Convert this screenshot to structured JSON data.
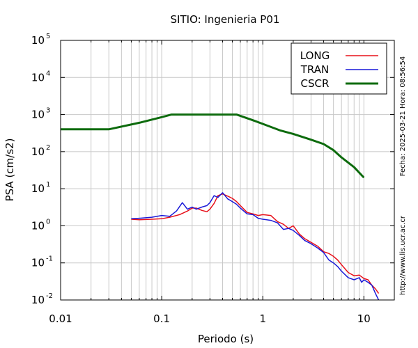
{
  "chart_data": {
    "type": "line",
    "title": "SITIO: Ingenieria P01",
    "xlabel": "Periodo (s)",
    "ylabel": "PSA (cm/s2)",
    "x_scale": "log",
    "y_scale": "log",
    "xlim": [
      0.01,
      20
    ],
    "ylim": [
      0.01,
      100000
    ],
    "grid": true,
    "legend_position": "top-right",
    "x_ticks": [
      {
        "value": 0.01,
        "label": "0.01"
      },
      {
        "value": 0.1,
        "label": "0.1"
      },
      {
        "value": 1,
        "label": "1"
      },
      {
        "value": 10,
        "label": "10"
      }
    ],
    "y_ticks": [
      {
        "value": 0.01,
        "base": "10",
        "exp": "-2"
      },
      {
        "value": 0.1,
        "base": "10",
        "exp": "-1"
      },
      {
        "value": 1,
        "base": "10",
        "exp": "0"
      },
      {
        "value": 10,
        "base": "10",
        "exp": "1"
      },
      {
        "value": 100,
        "base": "10",
        "exp": "2"
      },
      {
        "value": 1000,
        "base": "10",
        "exp": "3"
      },
      {
        "value": 10000,
        "base": "10",
        "exp": "4"
      },
      {
        "value": 100000,
        "base": "10",
        "exp": "5"
      }
    ],
    "series": [
      {
        "name": "LONG",
        "color": "#e8101a",
        "x": [
          0.05,
          0.06,
          0.08,
          0.1,
          0.12,
          0.15,
          0.18,
          0.2,
          0.22,
          0.25,
          0.28,
          0.3,
          0.33,
          0.36,
          0.4,
          0.45,
          0.5,
          0.55,
          0.6,
          0.7,
          0.8,
          0.9,
          1.0,
          1.2,
          1.4,
          1.6,
          1.8,
          2.0,
          2.3,
          2.6,
          3.0,
          3.5,
          4.0,
          4.5,
          5.0,
          5.5,
          6.0,
          7.0,
          8.0,
          9.0,
          10.0,
          11.0,
          12.0,
          13.0,
          14.0
        ],
        "y": [
          1.5,
          1.45,
          1.5,
          1.55,
          1.7,
          2.0,
          2.5,
          3.0,
          3.0,
          2.6,
          2.4,
          2.8,
          4.0,
          6.5,
          7.2,
          6.3,
          5.5,
          4.5,
          3.5,
          2.3,
          2.1,
          1.9,
          2.0,
          1.9,
          1.3,
          1.1,
          0.85,
          1.0,
          0.6,
          0.45,
          0.36,
          0.28,
          0.2,
          0.18,
          0.15,
          0.12,
          0.09,
          0.055,
          0.045,
          0.047,
          0.038,
          0.035,
          0.025,
          0.02,
          0.015
        ]
      },
      {
        "name": "TRAN",
        "color": "#1a1ad8",
        "x": [
          0.05,
          0.06,
          0.08,
          0.1,
          0.12,
          0.14,
          0.16,
          0.18,
          0.2,
          0.22,
          0.25,
          0.28,
          0.3,
          0.33,
          0.36,
          0.4,
          0.45,
          0.5,
          0.55,
          0.6,
          0.7,
          0.8,
          0.9,
          1.0,
          1.2,
          1.4,
          1.6,
          1.8,
          2.0,
          2.3,
          2.6,
          3.0,
          3.5,
          4.0,
          4.5,
          5.0,
          5.5,
          6.0,
          7.0,
          8.0,
          9.0,
          9.5,
          10.0,
          11.0,
          12.0,
          13.0,
          14.0
        ],
        "y": [
          1.55,
          1.6,
          1.7,
          1.9,
          1.8,
          2.5,
          4.2,
          2.8,
          3.2,
          2.8,
          3.2,
          3.5,
          4.2,
          6.5,
          5.8,
          7.8,
          5.3,
          4.5,
          3.8,
          3.0,
          2.1,
          2.0,
          1.6,
          1.5,
          1.4,
          1.2,
          0.8,
          0.85,
          0.75,
          0.55,
          0.4,
          0.33,
          0.25,
          0.19,
          0.12,
          0.1,
          0.08,
          0.06,
          0.04,
          0.035,
          0.04,
          0.03,
          0.035,
          0.03,
          0.025,
          0.015,
          0.01
        ]
      },
      {
        "name": "CSCR",
        "color": "#0d6b0d",
        "x": [
          0.01,
          0.03,
          0.06,
          0.1,
          0.125,
          0.2,
          0.3,
          0.4,
          0.55,
          0.8,
          1.0,
          1.5,
          2.0,
          3.0,
          4.0,
          5.0,
          6.0,
          8.0,
          10.0
        ],
        "y": [
          400,
          400,
          600,
          850,
          1000,
          1000,
          1000,
          1000,
          1000,
          700,
          560,
          370,
          300,
          210,
          160,
          110,
          70,
          38,
          20
        ]
      }
    ]
  },
  "side_text": {
    "timestamp": "Fecha: 2025-03-21 Hora: 08:56:54",
    "url": "http://www.lis.ucr.ac.cr"
  }
}
